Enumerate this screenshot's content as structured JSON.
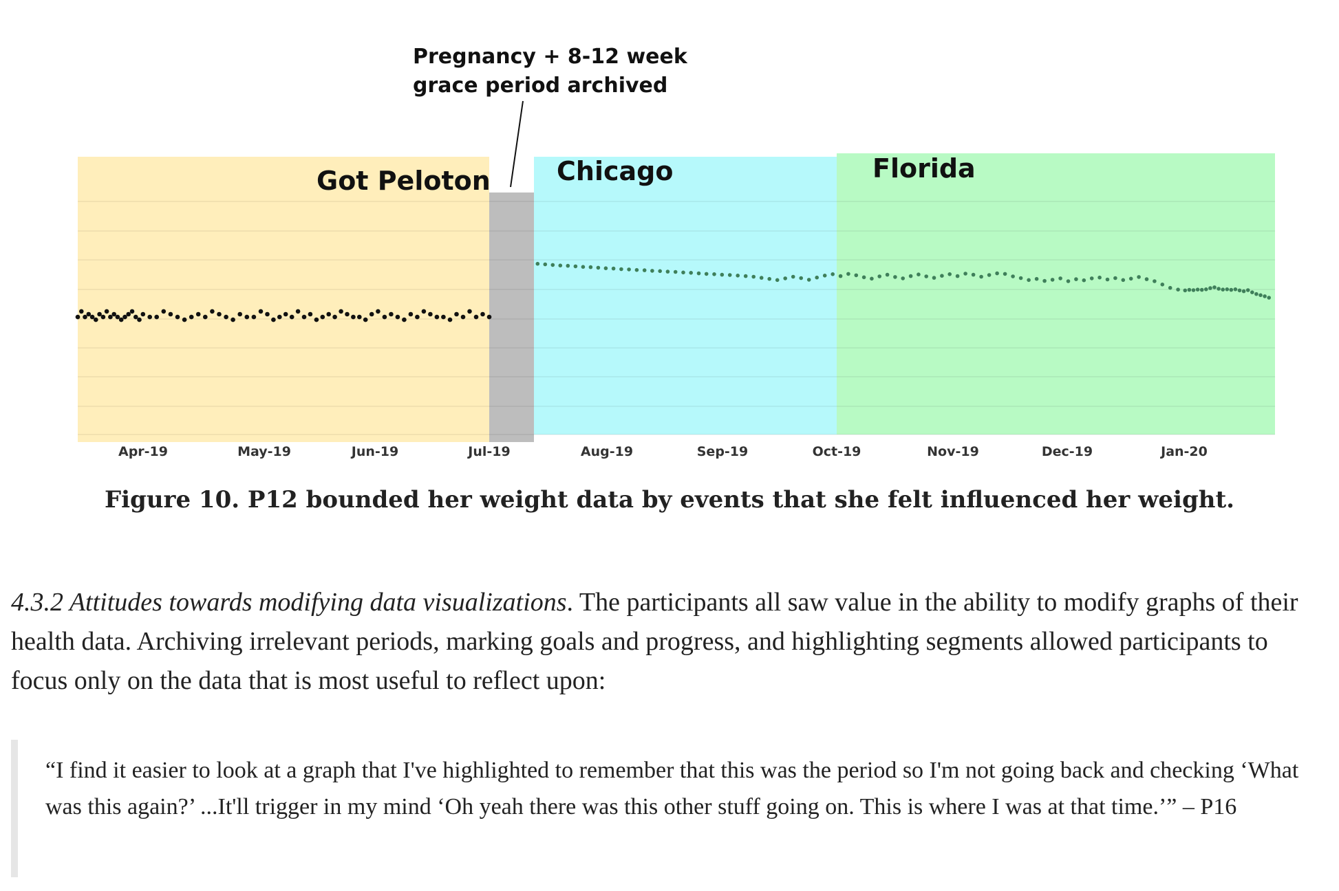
{
  "figure": {
    "caption": "Figure 10. P12 bounded her weight data by events that she felt influenced her weight.",
    "chart_data": {
      "type": "scatter",
      "x_tick_labels": [
        "Apr-19",
        "May-19",
        "Jun-19",
        "Jul-19",
        "Aug-19",
        "Sep-19",
        "Oct-19",
        "Nov-19",
        "Dec-19",
        "Jan-20"
      ],
      "x_range": [
        "2019-03-01",
        "2020-02-15"
      ],
      "y_axis_labels_visible": false,
      "y_range": [
        0,
        100
      ],
      "grid": "horizontal",
      "regions": [
        {
          "label": "Got Peloton",
          "start": "2019-03-01",
          "end": "2019-07-01",
          "color": "#ffeebb"
        },
        {
          "label": "",
          "start": "2019-07-01",
          "end": "2019-07-12",
          "color": "#bdbdbd"
        },
        {
          "label": "Chicago",
          "start": "2019-07-12",
          "end": "2019-10-01",
          "color": "#b6f9fb"
        },
        {
          "label": "Florida",
          "start": "2019-10-01",
          "end": "2020-02-15",
          "color": "#b8fac4"
        }
      ],
      "annotation": {
        "line1": "Pregnancy + 8-12 week",
        "line2": "grace period archived"
      },
      "series": [
        {
          "color_early": "#111111",
          "color_late": "#3f7f5a",
          "segments": [
            {
              "start": "2019-03-01",
              "end": "2019-07-01",
              "values": [
                42,
                44,
                42,
                43,
                42,
                41,
                43,
                42,
                44,
                42,
                43,
                42,
                41,
                42,
                43,
                44,
                42,
                41,
                43,
                42,
                42,
                44,
                43,
                42,
                41,
                42,
                43,
                42,
                44,
                43,
                42,
                41,
                43,
                42,
                42,
                44,
                43,
                41,
                42,
                43,
                42,
                44,
                42,
                43,
                41,
                42,
                43,
                42,
                44,
                43,
                42,
                42,
                41,
                43,
                44,
                42,
                43,
                42,
                41,
                43,
                42,
                44,
                43,
                42,
                42,
                41,
                43,
                42,
                44,
                42,
                43,
                42
              ]
            },
            {
              "start": "2019-07-13",
              "end": "2020-02-12",
              "values": [
                61,
                60.8,
                60.6,
                60.4,
                60.3,
                60.1,
                59.9,
                59.8,
                59.6,
                59.4,
                59.3,
                59.1,
                59,
                58.8,
                58.7,
                58.5,
                58.4,
                58.2,
                58.1,
                57.9,
                57.8,
                57.6,
                57.4,
                57.3,
                57.1,
                57,
                56.8,
                56.6,
                56.4,
                56,
                55.6,
                55.2,
                55.8,
                56.4,
                55.9,
                55.3,
                56.1,
                56.8,
                57.3,
                56.6,
                57.4,
                56.9,
                56.2,
                55.7,
                56.5,
                57.1,
                56.3,
                55.8,
                56.6,
                57.2,
                56.5,
                56,
                56.7,
                57.3,
                56.6,
                57.5,
                57.1,
                56.4,
                57,
                57.6,
                57.4,
                56.5,
                55.9,
                55.2,
                55.6,
                54.9,
                55.3,
                55.8,
                54.8,
                55.5,
                55.1,
                55.8,
                56.1,
                55.4,
                55.9,
                55.2,
                55.7,
                56.3,
                55.5,
                54.8,
                53.6,
                52.4,
                51.8,
                51.5,
                51.7,
                51.6,
                51.8,
                51.7,
                51.9,
                52.3,
                52.6,
                52.1,
                51.8,
                51.9,
                51.7,
                51.9,
                51.5,
                51.2,
                51.6,
                50.8,
                50.2,
                49.8,
                49.4,
                48.9
              ]
            }
          ]
        }
      ]
    }
  },
  "paragraph": {
    "section_label": "4.3.2 Attitudes towards modifying data visualizations",
    "text": ". The participants all saw value in the ability to modify graphs of their health data. Archiving irrelevant periods, marking goals and progress, and highlighting segments allowed participants to focus only on the data that is most useful to reflect upon:"
  },
  "quote": {
    "text": "“I find it easier to look at a graph that I've highlighted to remember that this was the period so I'm not going back and checking ‘What was this again?’ ...It'll trigger in my mind ‘Oh yeah there was this other stuff going on. This is where I was at that time.’” – P16"
  }
}
